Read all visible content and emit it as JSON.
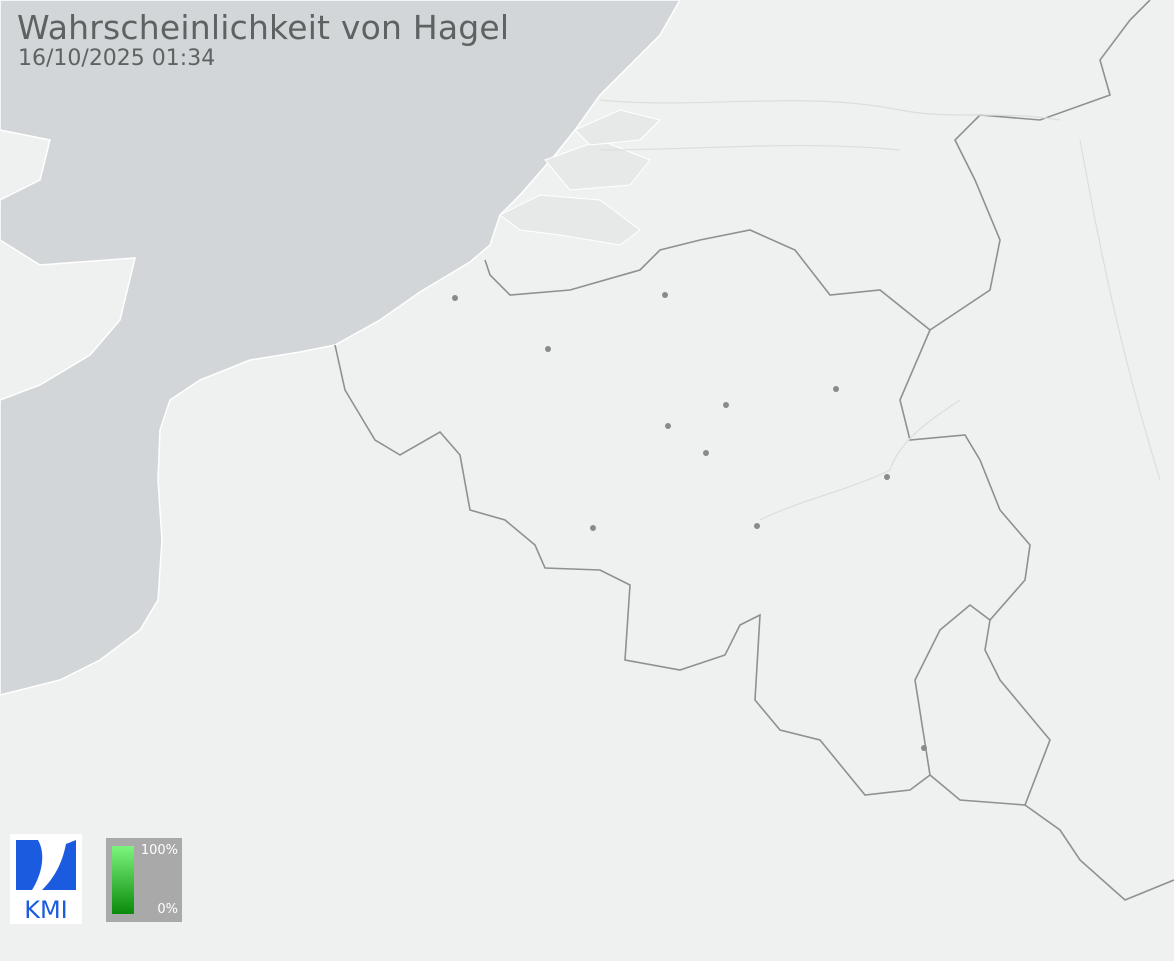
{
  "header": {
    "title": "Wahrscheinlichkeit von Hagel",
    "timestamp": "16/10/2025 01:34"
  },
  "legend": {
    "max_label": "100%",
    "min_label": "0%",
    "color_max": "#7df57d",
    "color_min": "#0a8a0a"
  },
  "logo": {
    "text": "KMI",
    "color": "#1a5be0"
  },
  "colors": {
    "land": "#eff0f0",
    "sea": "#d3d6d8",
    "border": "#8f9090",
    "city": "#8a8a8a"
  },
  "cities": [
    [
      455,
      298
    ],
    [
      548,
      349
    ],
    [
      665,
      295
    ],
    [
      726,
      405
    ],
    [
      668,
      426
    ],
    [
      706,
      453
    ],
    [
      836,
      389
    ],
    [
      887,
      477
    ],
    [
      757,
      526
    ],
    [
      593,
      528
    ],
    [
      924,
      748
    ]
  ]
}
